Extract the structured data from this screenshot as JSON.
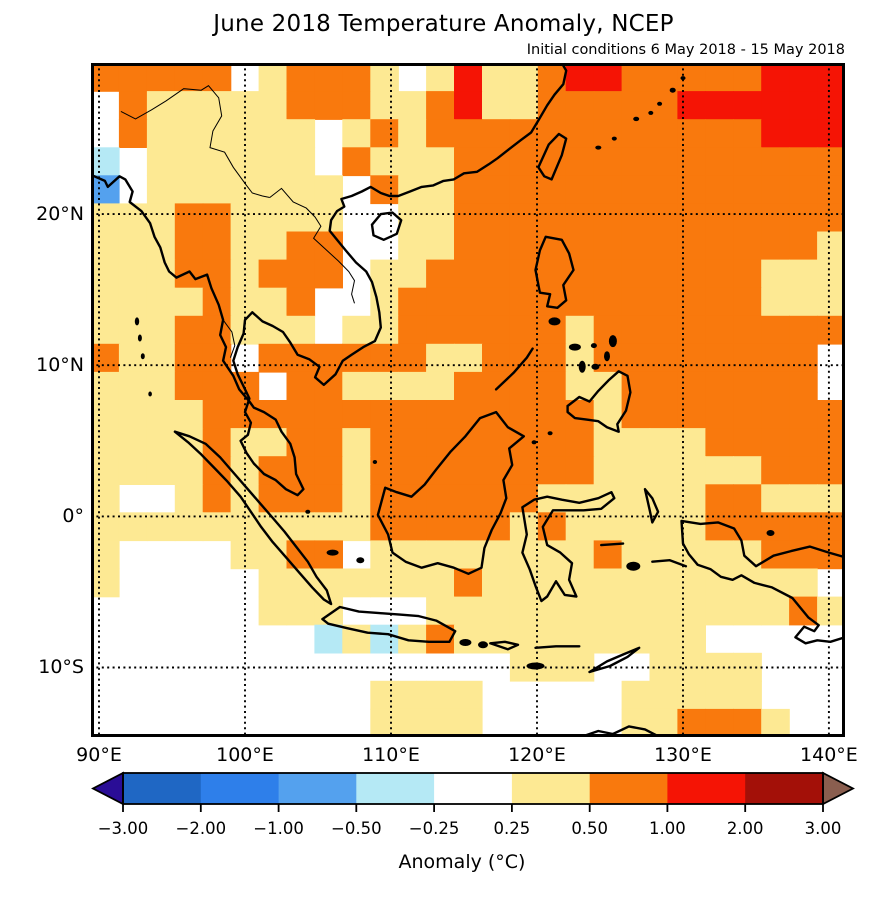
{
  "title": "June 2018 Temperature Anomaly, NCEP",
  "subtitle": "Initial conditions 6 May 2018 - 15 May 2018",
  "axes": {
    "x_tick_lons": [
      90,
      100,
      110,
      120,
      130,
      140
    ],
    "x_tick_labels": [
      "90°E",
      "100°E",
      "110°E",
      "120°E",
      "130°E",
      "140°E"
    ],
    "y_tick_lats": [
      20,
      10,
      0,
      -10
    ],
    "y_tick_labels": [
      "20°N",
      "10°N",
      "0°",
      "10°S"
    ]
  },
  "chart_data": {
    "type": "heatmap",
    "title": "June 2018 Temperature Anomaly, NCEP",
    "subtitle": "Initial conditions 6 May 2018 - 15 May 2018",
    "units": "°C",
    "projection_extent": {
      "lon_min": 89.45,
      "lon_max": 141.1,
      "lat_min": -14.6,
      "lat_max": 30.0
    },
    "grid_lines": {
      "lons": [
        90,
        100,
        110,
        120,
        130,
        140
      ],
      "lats": [
        20,
        10,
        0,
        -10
      ],
      "style": "dotted"
    },
    "value_legend": {
      "N": "-2.00 to -1.00 °C",
      "B": "-1.00 to -0.50 °C",
      "C": "-0.50 to -0.25 °C",
      "W": "-0.25 to 0.25 °C",
      "Y": "0.25 to 0.50 °C",
      "O": "0.50 to 1.00 °C",
      "R": "1.00 to 2.00 °C",
      "D": "2.00 to 3.00 °C"
    },
    "palette": {
      "N": "#2e7fea",
      "B": "#54a1ee",
      "C": "#b5e9f5",
      "W": "#ffffff",
      "Y": "#fde993",
      "O": "#f9790d",
      "R": "#f51405",
      "D": "#a31008"
    },
    "grid": {
      "ncols": 27,
      "nrows": 24,
      "rows": [
        "OOOOOWYOOOYWYRYYORROOOOORRR",
        "WOYYYYYOOOYYORYYOOOOORRRRRR",
        "WOYYYYYYWYOYOOOOOOOOOOOORRR",
        "CWYYYYYYWOYYYOOOOOOOOOOOOOO",
        "BWYYYYYYYWOYYOOOOOOOOOOOOOO",
        "YYYOOYYYYWWYYOOOOOOOOOOOOOO",
        "YYYOOYYOOWWYYOOOOOOOOOOOOOY",
        "YYYOOYOOOWYYOOOOOOOOOOOOYYY",
        "YYYYOYYOWWYOOOOOOOOOOOOOYYY",
        "YYYOOYYYWYYOOOOOOYOOOOOOOOO",
        "OYYOOWOOOOOOYYOOOYOOOOOOOOW",
        "YYYOOOWOOYYYYOOOOYYOOOOOOOW",
        "YYYYOOOOOOOOOOOOOOYOOOOOOOO",
        "YYYYOYYOOYOOOOOOOOYYYYOOOOO",
        "YYYYOYOOOYOOOOOOOOYYYYYYOOO",
        "YWWYOYOOOYOOOOOOYYYYYYOOYYY",
        "YYYYYYYYYYOOOOOYOYYYYYOOOOO",
        "YWWWWYYOOWYYYYYYYYOYYYYYOOO",
        "YWWWWWYYYYYYYOYYYYYYYYYYYYW",
        "WWWWWWYYYWWWYYYYYYYYYYYYYOY",
        "WWWWWWWWCYCYOYYYYYYYYYWWWWW",
        "WWWWWWWWWWWWWWWYYYWWYYYYWWW",
        "WWWWWWWWWWYYYYWWWWWYYYYYWWW",
        "WWWWWWWWWWYYYYWWWWWYYOOOYWW"
      ]
    },
    "colorbar": {
      "label": "Anomaly (°C)",
      "boundaries": [
        -3,
        -2,
        -1,
        -0.5,
        -0.25,
        0.25,
        0.5,
        1,
        2,
        3
      ],
      "tick_labels": [
        "−3.00",
        "−2.00",
        "−1.00",
        "−0.50",
        "−0.25",
        "0.25",
        "0.50",
        "1.00",
        "2.00",
        "3.00"
      ],
      "segment_colors": [
        "#1f67c4",
        "#2e7fea",
        "#54a1ee",
        "#b5e9f5",
        "#ffffff",
        "#fde993",
        "#f9790d",
        "#f51405",
        "#a31008"
      ],
      "under_arrow_color": "#2a0d96",
      "over_arrow_color": "#8a5e4f"
    }
  }
}
